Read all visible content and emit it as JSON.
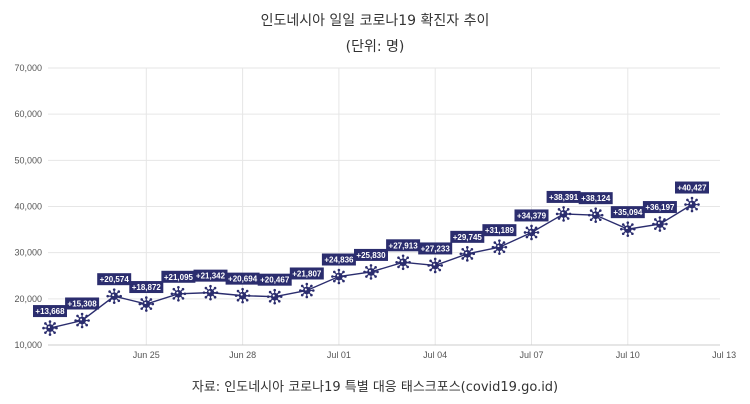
{
  "titles": {
    "main": "인도네시아 일일 코로나19 확진자 추이",
    "unit": "(단위: 명)",
    "source": "자료: 인도네시아 코로나19 특별 대응 태스크포스(covid19.go.id)"
  },
  "colors": {
    "line": "#2b2d6e",
    "marker": "#2b2d6e",
    "label_bg": "#2b2d6e",
    "grid": "#e6e6e6"
  },
  "chart_data": {
    "type": "line",
    "title": "인도네시아 일일 코로나19 확진자 추이",
    "subtitle": "(단위: 명)",
    "xlabel": "",
    "ylabel": "",
    "x": [
      "Jun 22",
      "Jun 23",
      "Jun 24",
      "Jun 25",
      "Jun 26",
      "Jun 27",
      "Jun 28",
      "Jun 29",
      "Jun 30",
      "Jul 01",
      "Jul 02",
      "Jul 03",
      "Jul 04",
      "Jul 05",
      "Jul 06",
      "Jul 07",
      "Jul 08",
      "Jul 09",
      "Jul 10",
      "Jul 11",
      "Jul 12"
    ],
    "x_ticks": [
      "Jun 25",
      "Jun 28",
      "Jul 01",
      "Jul 04",
      "Jul 07",
      "Jul 10",
      "Jul 13"
    ],
    "series": [
      {
        "values": [
          13668,
          15308,
          20574,
          18872,
          21095,
          21342,
          20694,
          20467,
          21807,
          24836,
          25830,
          27913,
          27233,
          29745,
          31189,
          34379,
          38391,
          38124,
          35094,
          36197,
          40427
        ],
        "labels": [
          "+13,668",
          "+15,308",
          "+20,574",
          "+18,872",
          "+21,095",
          "+21,342",
          "+20,694",
          "+20,467",
          "+21,807",
          "+24,836",
          "+25,830",
          "+27,913",
          "+27,233",
          "+29,745",
          "+31,189",
          "+34,379",
          "+38,391",
          "+38,124",
          "+35,094",
          "+36,197",
          "+40,427"
        ]
      }
    ],
    "ylim": [
      10000,
      70000
    ],
    "y_ticks": [
      10000,
      20000,
      30000,
      40000,
      50000,
      60000,
      70000
    ],
    "y_tick_labels": [
      "10,000",
      "20,000",
      "30,000",
      "40,000",
      "50,000",
      "60,000",
      "70,000"
    ],
    "grid": true,
    "legend": "none",
    "marker": "virus"
  }
}
